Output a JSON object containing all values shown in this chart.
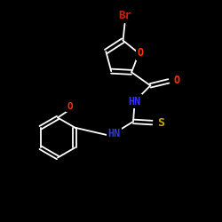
{
  "background_color": "#000000",
  "bond_color": "#ffffff",
  "atom_colors": {
    "Br": "#cc2200",
    "O": "#ff3300",
    "N": "#3333ff",
    "S": "#ccaa00",
    "C": "#ffffff"
  },
  "font_size": 8.5,
  "fig_size": [
    2.5,
    2.5
  ],
  "dpi": 100
}
